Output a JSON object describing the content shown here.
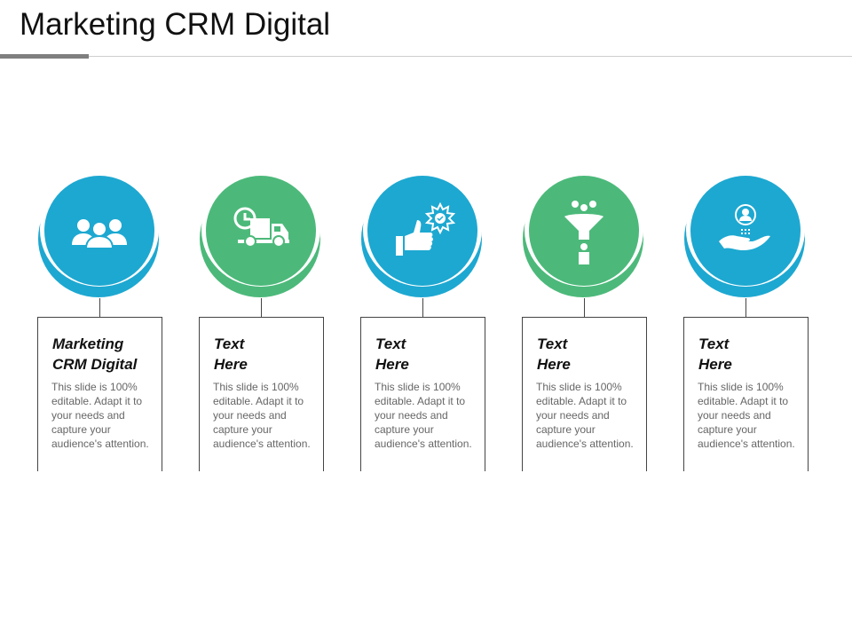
{
  "title": "Marketing CRM Digital",
  "colors": {
    "blue": "#1DA8D1",
    "green": "#4CB97A"
  },
  "items": [
    {
      "heading_line1": "Marketing",
      "heading_line2": "CRM Digital",
      "description": "This slide is 100% editable. Adapt it to your needs and capture your audience's attention.",
      "color": "blue",
      "icon": "business-team-icon"
    },
    {
      "heading_line1": "Text",
      "heading_line2": "Here",
      "description": "This slide is 100% editable. Adapt it to your needs and capture your audience's attention.",
      "color": "green",
      "icon": "delivery-truck-clock-icon"
    },
    {
      "heading_line1": "Text",
      "heading_line2": "Here",
      "description": "This slide is 100% editable. Adapt it to your needs and capture your audience's attention.",
      "color": "blue",
      "icon": "thumbs-up-badge-icon"
    },
    {
      "heading_line1": "Text",
      "heading_line2": "Here",
      "description": "This slide is 100% editable. Adapt it to your needs and capture your audience's attention.",
      "color": "green",
      "icon": "funnel-people-icon"
    },
    {
      "heading_line1": "Text",
      "heading_line2": "Here",
      "description": "This slide is 100% editable. Adapt it to your needs and capture your audience's attention.",
      "color": "blue",
      "icon": "hand-user-icon"
    }
  ]
}
